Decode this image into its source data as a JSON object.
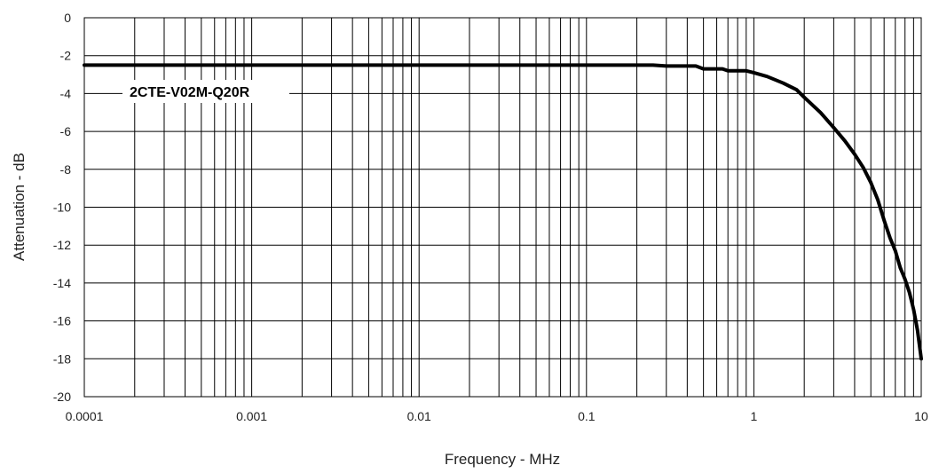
{
  "chart_data": {
    "type": "line",
    "xscale": "log",
    "xlim": [
      0.0001,
      10
    ],
    "ylim": [
      -20,
      0
    ],
    "grid": true,
    "xlabel": "Frequency - MHz",
    "ylabel": "Attenuation - dB",
    "x_ticks": [
      "0.0001",
      "0.001",
      "0.01",
      "0.1",
      "1",
      "10"
    ],
    "y_ticks": [
      "0",
      "-2",
      "-4",
      "-6",
      "-8",
      "-10",
      "-12",
      "-14",
      "-16",
      "-18",
      "-20"
    ],
    "series": [
      {
        "name": "2CTE-V02M-Q20R",
        "x": [
          0.0001,
          0.001,
          0.01,
          0.1,
          0.25,
          0.3,
          0.45,
          0.5,
          0.65,
          0.7,
          0.9,
          1.0,
          1.2,
          1.5,
          1.8,
          2.0,
          2.5,
          3.0,
          3.5,
          4.0,
          4.5,
          5.0,
          5.5,
          6.0,
          6.5,
          7.0,
          7.5,
          8.0,
          8.5,
          9.0,
          9.5,
          10
        ],
        "y": [
          -2.5,
          -2.5,
          -2.5,
          -2.5,
          -2.5,
          -2.55,
          -2.55,
          -2.7,
          -2.7,
          -2.8,
          -2.8,
          -2.9,
          -3.1,
          -3.45,
          -3.8,
          -4.2,
          -5.0,
          -5.8,
          -6.5,
          -7.2,
          -7.9,
          -8.7,
          -9.6,
          -10.7,
          -11.6,
          -12.3,
          -13.2,
          -13.8,
          -14.5,
          -15.4,
          -16.5,
          -18.0
        ]
      }
    ]
  }
}
